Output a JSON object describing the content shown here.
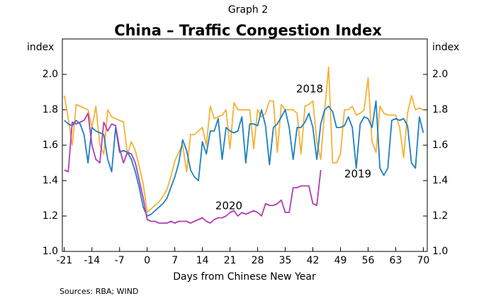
{
  "chart_data": {
    "type": "line",
    "supertitle": "Graph 2",
    "title": "China – Traffic Congestion Index",
    "ylabel": "index",
    "y2label": "index",
    "xlabel": "Days from Chinese New Year",
    "source": "Sources:  RBA; WIND",
    "xlim": [
      -21.5,
      71
    ],
    "xticks": [
      -21,
      -14,
      -7,
      0,
      7,
      14,
      21,
      28,
      35,
      42,
      49,
      56,
      63,
      70
    ],
    "ylim": [
      1.0,
      2.2
    ],
    "yticks": [
      {
        "value": 1.0,
        "label": "1.0"
      },
      1.2,
      1.4,
      1.6,
      1.8,
      {
        "value": 2.0,
        "label": "2.0"
      }
    ],
    "y2lim": [
      1.0,
      2.2
    ],
    "y2ticks": [
      {
        "value": 1.0,
        "label": "1.0"
      },
      1.2,
      1.4,
      1.6,
      1.8,
      {
        "value": 2.0,
        "label": "2.0"
      }
    ],
    "grid": false,
    "x": [
      -21,
      -20,
      -19,
      -18,
      -17,
      -16,
      -15,
      -14,
      -13,
      -12,
      -11,
      -10,
      -9,
      -8,
      -7,
      -6,
      -5,
      -4,
      -3,
      -2,
      -1,
      0,
      1,
      2,
      3,
      4,
      5,
      6,
      7,
      8,
      9,
      10,
      11,
      12,
      13,
      14,
      15,
      16,
      17,
      18,
      19,
      20,
      21,
      22,
      23,
      24,
      25,
      26,
      27,
      28,
      29,
      30,
      31,
      32,
      33,
      34,
      35,
      36,
      37,
      38,
      39,
      40,
      41,
      42,
      43,
      44,
      45,
      46,
      47,
      48,
      49,
      50,
      51,
      52,
      53,
      54,
      55,
      56,
      57,
      58,
      59,
      60,
      61,
      62,
      63,
      64,
      65,
      66,
      67,
      68,
      69,
      70
    ],
    "series": [
      {
        "name": "2018",
        "color": "#f5b235",
        "values": [
          1.88,
          1.75,
          1.6,
          1.83,
          1.82,
          1.81,
          1.8,
          1.7,
          1.82,
          1.6,
          1.55,
          1.8,
          1.76,
          1.75,
          1.74,
          1.73,
          1.55,
          1.62,
          1.57,
          1.48,
          1.38,
          1.22,
          1.24,
          1.26,
          1.28,
          1.31,
          1.35,
          1.42,
          1.51,
          1.56,
          1.6,
          1.45,
          1.66,
          1.66,
          1.68,
          1.7,
          1.6,
          1.82,
          1.75,
          1.76,
          1.77,
          1.8,
          1.58,
          1.84,
          1.8,
          1.8,
          1.8,
          1.8,
          1.58,
          1.8,
          1.76,
          1.78,
          1.85,
          1.85,
          1.56,
          1.83,
          1.8,
          1.8,
          1.8,
          1.78,
          1.55,
          1.82,
          1.83,
          1.85,
          1.62,
          1.52,
          1.8,
          2.04,
          1.5,
          1.5,
          1.55,
          1.8,
          1.8,
          1.82,
          1.77,
          1.78,
          1.8,
          1.98,
          1.62,
          1.56,
          1.82,
          1.78,
          1.77,
          1.77,
          1.77,
          1.7,
          1.53,
          1.78,
          1.88,
          1.8,
          1.81,
          1.8
        ]
      },
      {
        "name": "2019",
        "color": "#1e7fc3",
        "values": [
          1.74,
          1.72,
          1.71,
          1.74,
          1.72,
          1.66,
          1.5,
          1.7,
          1.68,
          1.67,
          1.66,
          1.52,
          1.45,
          1.7,
          1.56,
          1.57,
          1.56,
          1.52,
          1.45,
          1.36,
          1.25,
          1.2,
          1.21,
          1.23,
          1.25,
          1.27,
          1.3,
          1.36,
          1.42,
          1.5,
          1.63,
          1.57,
          1.46,
          1.42,
          1.4,
          1.62,
          1.55,
          1.68,
          1.68,
          1.75,
          1.52,
          1.7,
          1.68,
          1.67,
          1.68,
          1.76,
          1.5,
          1.72,
          1.72,
          1.71,
          1.8,
          1.71,
          1.49,
          1.7,
          1.72,
          1.76,
          1.8,
          1.7,
          1.52,
          1.7,
          1.7,
          1.73,
          1.78,
          1.7,
          1.52,
          1.72,
          1.8,
          1.82,
          1.79,
          1.7,
          1.7,
          1.71,
          1.76,
          1.7,
          1.47,
          1.72,
          1.76,
          1.75,
          1.7,
          1.85,
          1.47,
          1.43,
          1.47,
          1.74,
          1.75,
          1.74,
          1.75,
          1.71,
          1.5,
          1.47,
          1.76,
          1.67
        ]
      },
      {
        "name": "2020",
        "color": "#b23db4",
        "values": [
          1.46,
          1.45,
          1.73,
          1.72,
          1.73,
          1.74,
          1.78,
          1.6,
          1.52,
          1.5,
          1.73,
          1.68,
          1.72,
          1.71,
          1.58,
          1.5,
          1.56,
          1.55,
          1.5,
          1.4,
          1.3,
          1.18,
          1.17,
          1.17,
          1.16,
          1.16,
          1.16,
          1.17,
          1.16,
          1.17,
          1.17,
          1.17,
          1.16,
          1.17,
          1.18,
          1.19,
          1.17,
          1.16,
          1.18,
          1.19,
          1.19,
          1.2,
          1.22,
          1.23,
          1.2,
          1.22,
          1.21,
          1.22,
          1.23,
          1.22,
          1.2,
          1.27,
          1.26,
          1.26,
          1.27,
          1.29,
          1.22,
          1.22,
          1.36,
          1.36,
          1.37,
          1.37,
          1.37,
          1.27,
          1.26,
          1.46,
          null,
          null,
          null,
          null,
          null,
          null,
          null,
          null,
          null,
          null,
          null,
          null,
          null,
          null,
          null,
          null,
          null,
          null,
          null,
          null,
          null,
          null,
          null,
          null,
          null,
          null
        ]
      }
    ]
  }
}
